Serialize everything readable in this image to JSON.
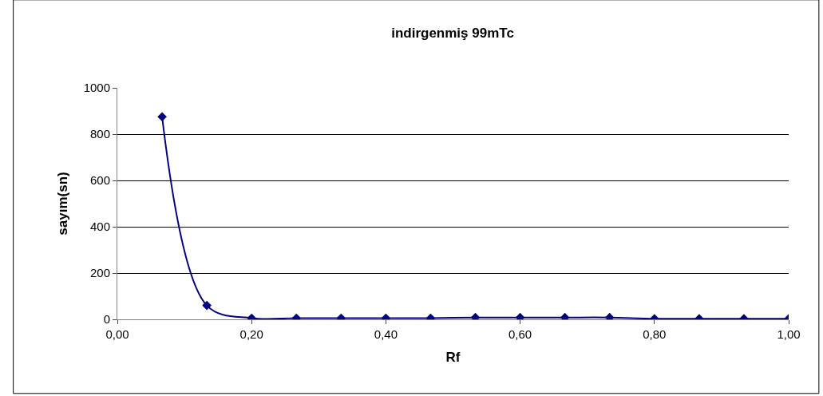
{
  "chart_data": {
    "type": "line",
    "title": "indirgenmiş 99mTc",
    "xlabel": "Rf",
    "ylabel": "sayım(sn)",
    "x": [
      0.0667,
      0.1333,
      0.2,
      0.2667,
      0.3333,
      0.4,
      0.4667,
      0.5333,
      0.6,
      0.6667,
      0.7333,
      0.8,
      0.8667,
      0.9333,
      1.0
    ],
    "series": [
      {
        "color": "#000080",
        "values": [
          875,
          60,
          5,
          5,
          5,
          5,
          5,
          8,
          8,
          8,
          8,
          3,
          3,
          3,
          3
        ]
      }
    ],
    "xlim": [
      0,
      1
    ],
    "xticks": [
      {
        "value": 0,
        "label": "0,00"
      },
      {
        "value": 0.2,
        "label": "0,20"
      },
      {
        "value": 0.4,
        "label": "0,40"
      },
      {
        "value": 0.6,
        "label": "0,60"
      },
      {
        "value": 0.8,
        "label": "0,80"
      },
      {
        "value": 1,
        "label": "1,00"
      }
    ],
    "ylim": [
      0,
      1000
    ],
    "yticks": [
      0,
      200,
      400,
      600,
      800,
      1000
    ],
    "grid": "y",
    "legend": false,
    "marker": "diamond",
    "line_style": "solid"
  }
}
